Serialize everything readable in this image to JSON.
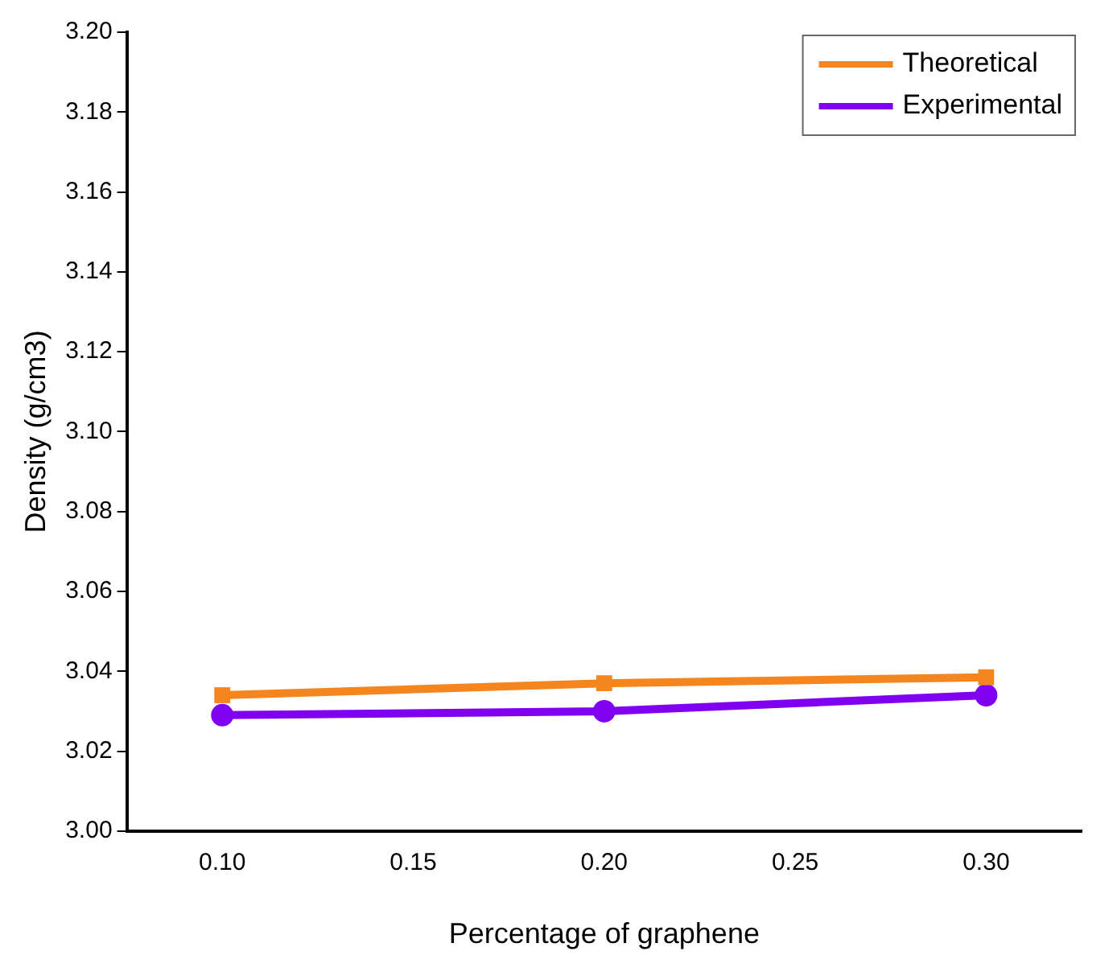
{
  "chart_data": {
    "type": "line",
    "xlabel": "Percentage of graphene",
    "ylabel": "Density (g/cm3)",
    "x": [
      0.1,
      0.2,
      0.3
    ],
    "series": [
      {
        "name": "Theoretical",
        "color": "#f5861f",
        "marker": "square",
        "values": [
          3.034,
          3.037,
          3.0385
        ]
      },
      {
        "name": "Experimental",
        "color": "#8000f0",
        "marker": "circle",
        "values": [
          3.029,
          3.03,
          3.034
        ]
      }
    ],
    "xlim": [
      0.075,
      0.325
    ],
    "xticks": [
      {
        "value": 0.1,
        "label": "0.10"
      },
      0.15,
      {
        "value": 0.2,
        "label": "0.20"
      },
      0.25,
      {
        "value": 0.3,
        "label": "0.30"
      }
    ],
    "ylim": [
      3.0,
      3.2
    ],
    "yticks": [
      {
        "value": 3.0,
        "label": "3.00"
      },
      3.02,
      3.04,
      3.06,
      3.08,
      {
        "value": 3.1,
        "label": "3.10"
      },
      3.12,
      3.14,
      3.16,
      3.18,
      {
        "value": 3.2,
        "label": "3.20"
      }
    ],
    "grid": false,
    "legend": "top right"
  }
}
